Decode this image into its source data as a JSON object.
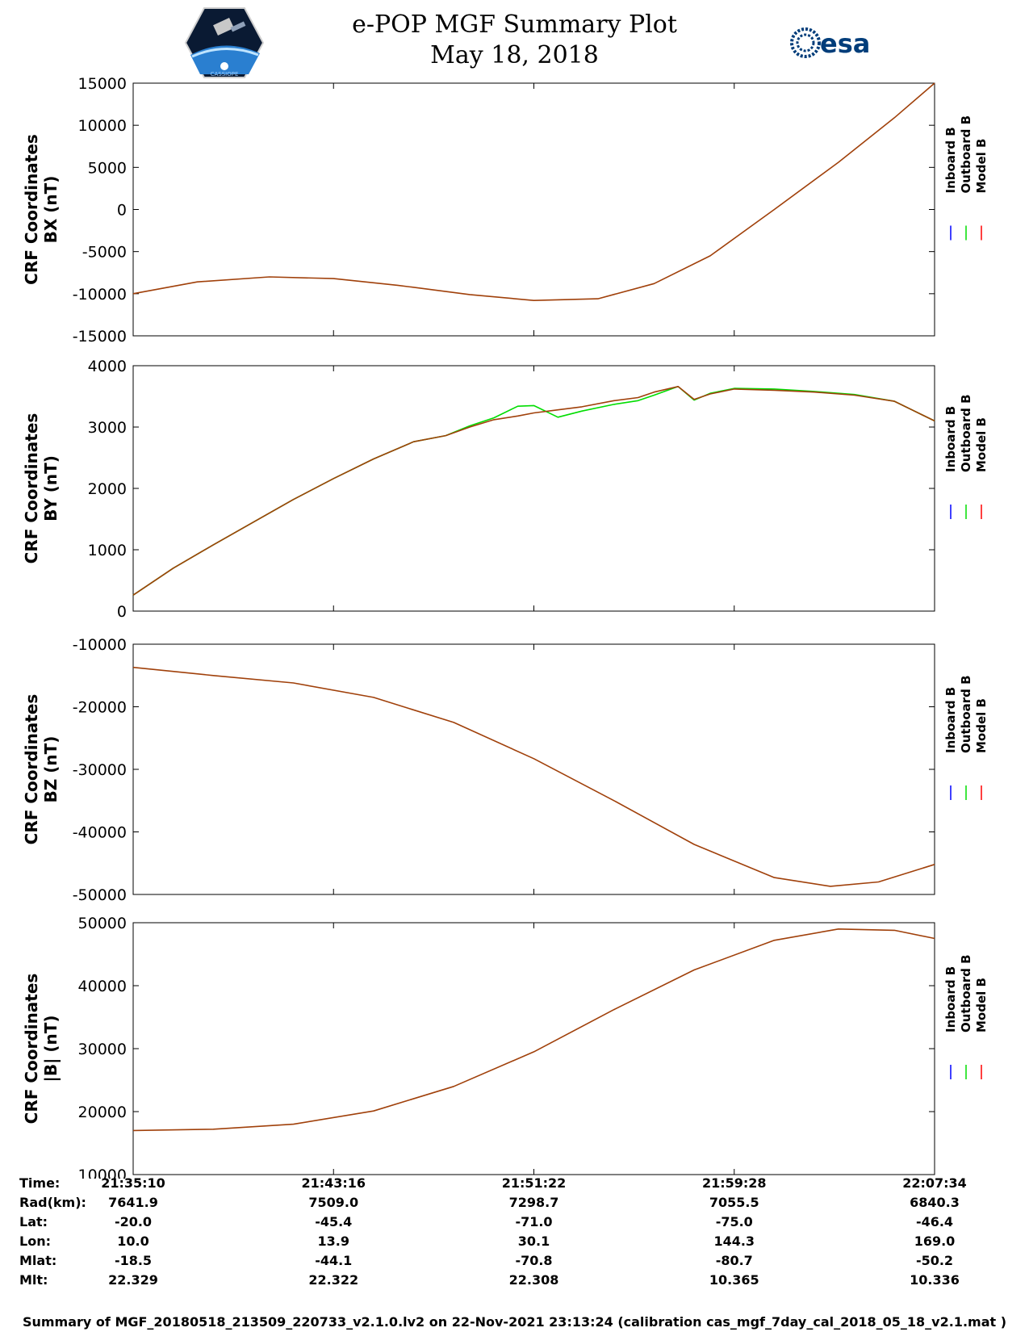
{
  "header": {
    "title_line1": "e-POP MGF Summary Plot",
    "title_line2": "May 18, 2018",
    "logo_left_text": "CASSIOPE",
    "logo_right_text": "esa"
  },
  "colors": {
    "inboard": "#0000ff",
    "outboard": "#00dd00",
    "model": "#ff0000",
    "overlay": "#a0400a"
  },
  "legend": [
    "Inboard B",
    "Outboard B",
    "Model B"
  ],
  "chart_data": [
    {
      "type": "line",
      "ylabel_line1": "CRF Coordinates",
      "ylabel_line2": "BX (nT)",
      "ylim": [
        -15000,
        15000
      ],
      "yticks": [
        15000,
        10000,
        5000,
        0,
        -5000,
        -10000,
        -15000
      ],
      "xticks": [
        "21:35:10",
        "21:43:16",
        "21:51:22",
        "21:59:28",
        "22:07:34"
      ],
      "x": [
        0,
        0.08,
        0.17,
        0.25,
        0.33,
        0.42,
        0.5,
        0.58,
        0.65,
        0.72,
        0.8,
        0.88,
        0.95,
        1.0
      ],
      "series": [
        {
          "name": "Model B",
          "values": [
            -10000,
            -8600,
            -8000,
            -8200,
            -9000,
            -10100,
            -10800,
            -10600,
            -8800,
            -5500,
            0,
            5600,
            10900,
            15000
          ]
        }
      ]
    },
    {
      "type": "line",
      "ylabel_line1": "CRF Coordinates",
      "ylabel_line2": "BY (nT)",
      "ylim": [
        0,
        4000
      ],
      "yticks": [
        4000,
        3000,
        2000,
        1000,
        0
      ],
      "xticks": [
        "21:35:10",
        "21:43:16",
        "21:51:22",
        "21:59:28",
        "22:07:34"
      ],
      "x": [
        0,
        0.05,
        0.1,
        0.15,
        0.2,
        0.25,
        0.3,
        0.35,
        0.39,
        0.42,
        0.45,
        0.48,
        0.5,
        0.53,
        0.56,
        0.6,
        0.63,
        0.65,
        0.68,
        0.7,
        0.72,
        0.75,
        0.8,
        0.85,
        0.9,
        0.95,
        1.0
      ],
      "series": [
        {
          "name": "Model B",
          "values": [
            260,
            700,
            1080,
            1450,
            1820,
            2160,
            2480,
            2760,
            2860,
            3000,
            3120,
            3180,
            3230,
            3280,
            3330,
            3430,
            3480,
            3570,
            3660,
            3450,
            3540,
            3620,
            3600,
            3570,
            3520,
            3420,
            3100
          ]
        },
        {
          "name": "Outboard B",
          "values": [
            260,
            700,
            1080,
            1450,
            1820,
            2160,
            2480,
            2760,
            2860,
            3020,
            3150,
            3340,
            3350,
            3160,
            3260,
            3370,
            3430,
            3520,
            3660,
            3440,
            3550,
            3630,
            3620,
            3580,
            3530,
            3420,
            3100
          ]
        }
      ]
    },
    {
      "type": "line",
      "ylabel_line1": "CRF Coordinates",
      "ylabel_line2": "BZ (nT)",
      "ylim": [
        -50000,
        -10000
      ],
      "yticks": [
        -10000,
        -20000,
        -30000,
        -40000,
        -50000
      ],
      "xticks": [
        "21:35:10",
        "21:43:16",
        "21:51:22",
        "21:59:28",
        "22:07:34"
      ],
      "x": [
        0,
        0.1,
        0.2,
        0.3,
        0.4,
        0.5,
        0.6,
        0.7,
        0.8,
        0.87,
        0.93,
        1.0
      ],
      "series": [
        {
          "name": "Model B",
          "values": [
            -13700,
            -15000,
            -16200,
            -18500,
            -22500,
            -28300,
            -35000,
            -42000,
            -47300,
            -48700,
            -48000,
            -45200
          ]
        }
      ]
    },
    {
      "type": "line",
      "ylabel_line1": "CRF Coordinates",
      "ylabel_line2": "|B| (nT)",
      "ylim": [
        10000,
        50000
      ],
      "yticks": [
        50000,
        40000,
        30000,
        20000,
        10000
      ],
      "xticks": [
        "21:35:10",
        "21:43:16",
        "21:51:22",
        "21:59:28",
        "22:07:34"
      ],
      "x": [
        0,
        0.1,
        0.2,
        0.3,
        0.4,
        0.5,
        0.6,
        0.7,
        0.8,
        0.88,
        0.95,
        1.0
      ],
      "series": [
        {
          "name": "Model B",
          "values": [
            17000,
            17200,
            18000,
            20100,
            24000,
            29500,
            36200,
            42500,
            47200,
            49000,
            48800,
            47500
          ]
        }
      ]
    }
  ],
  "ephemeris": {
    "labels": [
      "Time:",
      "Rad(km):",
      "Lat:",
      "Lon:",
      "Mlat:",
      "Mlt:"
    ],
    "columns": [
      [
        "21:35:10",
        "7641.9",
        "-20.0",
        "10.0",
        "-18.5",
        "22.329"
      ],
      [
        "21:43:16",
        "7509.0",
        "-45.4",
        "13.9",
        "-44.1",
        "22.322"
      ],
      [
        "21:51:22",
        "7298.7",
        "-71.0",
        "30.1",
        "-70.8",
        "22.308"
      ],
      [
        "21:59:28",
        "7055.5",
        "-75.0",
        "144.3",
        "-80.7",
        "10.365"
      ],
      [
        "22:07:34",
        "6840.3",
        "-46.4",
        "169.0",
        "-50.2",
        "10.336"
      ]
    ]
  },
  "footer": "Summary of MGF_20180518_213509_220733_v2.1.0.lv2 on 22-Nov-2021 23:13:24 (calibration cas_mgf_7day_cal_2018_05_18_v2.1.mat )"
}
